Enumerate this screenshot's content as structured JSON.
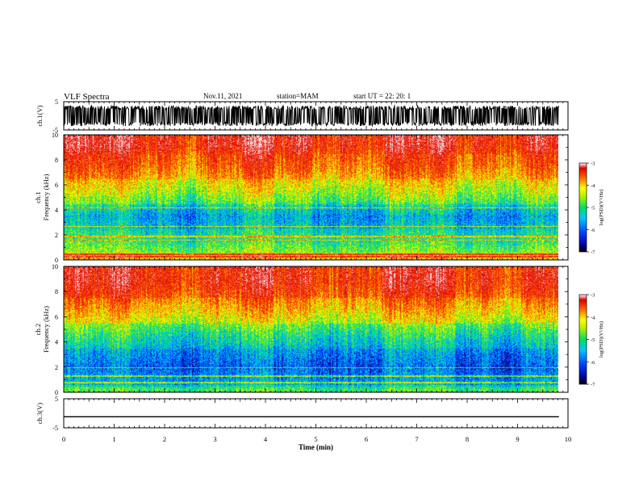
{
  "header": {
    "title": "VLF Spectra",
    "date": "Nov.11, 2021",
    "station": "station=MAM",
    "start": "start UT =  22: 20: 1"
  },
  "chart_data": [
    {
      "type": "line",
      "panel": "waveform-ch1",
      "ylabel": "ch.1(V)",
      "ylim": [
        -5,
        5
      ],
      "yticks": [
        "5",
        "-5"
      ],
      "xlim": [
        0,
        10
      ],
      "description_values": "dense oscillating waveform spanning about -3.5 to 3.5 V over the full 0 to 9.8 min"
    },
    {
      "type": "heatmap",
      "panel": "spectrogram-ch1",
      "ylabel": "ch.1\nFrequency (kHz)",
      "ylim": [
        0,
        10
      ],
      "yticks": [
        "0",
        "2",
        "4",
        "6",
        "8",
        "10"
      ],
      "xlim": [
        0,
        10
      ],
      "data_end_min": 9.8,
      "colorbar": {
        "label": "log(PSD)(V²/Hz)",
        "range": [
          -7,
          -3
        ],
        "ticks": [
          "-3",
          "-4",
          "-5",
          "-6",
          "-7"
        ]
      },
      "band_levels_by_khz": [
        {
          "from": 0,
          "to": 0.6,
          "log_psd": -4.6
        },
        {
          "from": 0.6,
          "to": 2.5,
          "log_psd": -5.5
        },
        {
          "from": 2.5,
          "to": 4.5,
          "log_psd": -6.0
        },
        {
          "from": 4.5,
          "to": 6.5,
          "log_psd": -5.0
        },
        {
          "from": 6.5,
          "to": 8.5,
          "log_psd": -4.2
        },
        {
          "from": 8.5,
          "to": 10,
          "log_psd": -3.7
        }
      ],
      "narrowband_lines_khz": [
        0.3,
        0.5,
        1.6,
        1.9,
        2.7,
        4.2
      ]
    },
    {
      "type": "heatmap",
      "panel": "spectrogram-ch2",
      "ylabel": "ch.2\nFrequency (kHz)",
      "ylim": [
        0,
        10
      ],
      "yticks": [
        "0",
        "2",
        "4",
        "6",
        "8",
        "10"
      ],
      "xlim": [
        0,
        10
      ],
      "data_end_min": 9.8,
      "colorbar": {
        "label": "log(PSD)(V²/Hz)",
        "range": [
          -7,
          -3
        ],
        "ticks": [
          "-3",
          "-4",
          "-5",
          "-6",
          "-7"
        ]
      },
      "band_levels_by_khz": [
        {
          "from": 0,
          "to": 0.6,
          "log_psd": -5.4
        },
        {
          "from": 0.6,
          "to": 3.5,
          "log_psd": -6.3
        },
        {
          "from": 3.5,
          "to": 5.5,
          "log_psd": -5.6
        },
        {
          "from": 5.5,
          "to": 7.5,
          "log_psd": -4.6
        },
        {
          "from": 7.5,
          "to": 10,
          "log_psd": -3.8
        }
      ],
      "narrowband_lines_khz": [
        0.8,
        1.3,
        2.0
      ]
    },
    {
      "type": "line",
      "panel": "waveform-ch3",
      "ylabel": "ch.3(V)",
      "ylim": [
        -5,
        5
      ],
      "yticks": [
        "5",
        "-5"
      ],
      "xlabel": "Time  (min)",
      "xlim": [
        0,
        10
      ],
      "xticks": [
        "0",
        "1",
        "2",
        "3",
        "4",
        "5",
        "6",
        "7",
        "8",
        "9",
        "10"
      ],
      "constant_value": -1.2
    }
  ],
  "colors": {
    "axis": "#000000",
    "background": "#ffffff"
  }
}
